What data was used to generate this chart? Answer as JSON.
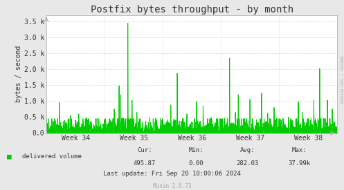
{
  "title": "Postfix bytes throughput - by month",
  "ylabel": "bytes / second",
  "background_color": "#e8e8e8",
  "plot_bg_color": "#ffffff",
  "grid_color_h": "#ff9999",
  "grid_color_v": "#cccccc",
  "line_color": "#00cc00",
  "fill_color": "#00cc00",
  "ytick_labels": [
    "0.0",
    "0.5 k",
    "1.0 k",
    "1.5 k",
    "2.0 k",
    "2.5 k",
    "3.0 k",
    "3.5 k"
  ],
  "ytick_vals": [
    0,
    500,
    1000,
    1500,
    2000,
    2500,
    3000,
    3500
  ],
  "ylim": [
    0,
    3700
  ],
  "xtick_labels": [
    "Week 34",
    "Week 35",
    "Week 36",
    "Week 37",
    "Week 38"
  ],
  "legend_label": "delivered volume",
  "legend_color": "#00cc00",
  "footer_lastupdate": "Last update: Fri Sep 20 10:00:06 2024",
  "footer_munin": "Munin 2.0.73",
  "rrdtool_label": "RRDTOOL / TOBI OETIKER",
  "title_fontsize": 10,
  "axis_fontsize": 7,
  "footer_fontsize": 6.5,
  "num_points": 1800,
  "seed": 42
}
